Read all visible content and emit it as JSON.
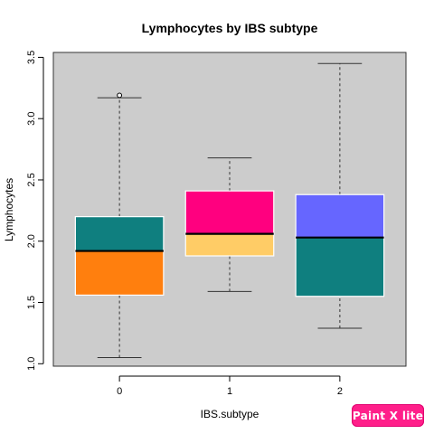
{
  "chart_data": {
    "type": "boxplot",
    "title": "Lymphocytes by IBS subtype",
    "xlabel": "IBS.subtype",
    "ylabel": "Lymphocytes",
    "categories": [
      "0",
      "1",
      "2"
    ],
    "ylim": [
      0.98,
      3.54
    ],
    "yticks": [
      "1.0",
      "1.5",
      "2.0",
      "2.5",
      "3.0",
      "3.5"
    ],
    "grid": false,
    "background": "#cccccc",
    "boxes": [
      {
        "category": "0",
        "whisker_low": 1.05,
        "q1": 1.56,
        "median": 1.92,
        "q3": 2.2,
        "whisker_high": 3.17,
        "outliers": [
          3.19
        ],
        "lower_color": "#ff7f0e",
        "upper_color": "#0f7f7f"
      },
      {
        "category": "1",
        "whisker_low": 1.59,
        "q1": 1.88,
        "median": 2.06,
        "q3": 2.41,
        "whisker_high": 2.68,
        "outliers": [],
        "lower_color": "#ffcc66",
        "upper_color": "#ff007f"
      },
      {
        "category": "2",
        "whisker_low": 1.29,
        "q1": 1.55,
        "median": 2.03,
        "q3": 2.38,
        "whisker_high": 3.45,
        "outliers": [],
        "lower_color": "#0f7f7f",
        "upper_color": "#6666ff"
      }
    ]
  },
  "watermark": {
    "text": "Paint X lite",
    "color": "#ff1f8a"
  }
}
